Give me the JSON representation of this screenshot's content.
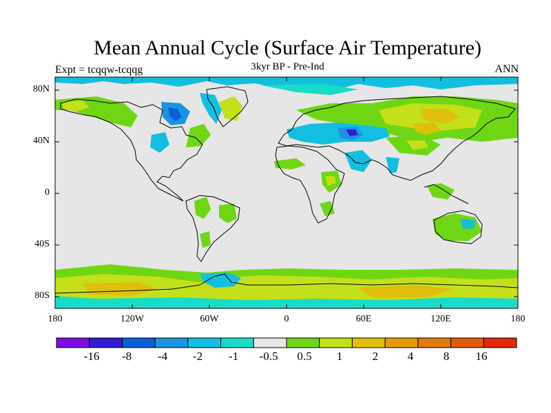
{
  "title": "Mean Annual Cycle (Surface Air Temperature)",
  "subtitle": "3kyr BP - Pre-Ind",
  "left_label": "Expt = tcqqw-tcqqg",
  "right_label": "ANN",
  "lat_labels": [
    "80N",
    "40N",
    "0",
    "40S",
    "80S"
  ],
  "lon_labels": [
    "180",
    "120W",
    "60W",
    "0",
    "60E",
    "120E",
    "180"
  ],
  "colorbar": {
    "colors": [
      "#7c0ee0",
      "#2f1ed0",
      "#0a5ed6",
      "#1a94e0",
      "#12bfe0",
      "#19dcc8",
      "#e6e6e6",
      "#6fd614",
      "#c4e01a",
      "#e0bf0a",
      "#e29a05",
      "#e07a0a",
      "#e05a0a",
      "#e02a05"
    ],
    "labels": [
      "-16",
      "-8",
      "-4",
      "-2",
      "-1",
      "-0.5",
      "0.5",
      "1",
      "2",
      "4",
      "8",
      "16"
    ]
  },
  "map_colors": {
    "background": "#e6e6e6",
    "cool_1": "#19dcc8",
    "cool_2": "#12bfe0",
    "cool_3": "#1a94e0",
    "cool_4": "#0a5ed6",
    "cool_5": "#2f1ed0",
    "warm_1": "#6fd614",
    "warm_2": "#c4e01a",
    "warm_3": "#e0bf0a"
  }
}
